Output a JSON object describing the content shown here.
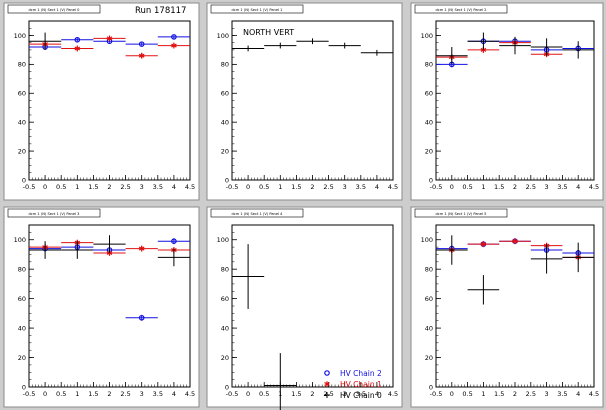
{
  "header": {
    "run_label": "Run 178117"
  },
  "colors": {
    "chain2": "#1010e0",
    "chain1": "#e01010",
    "chain0": "#000000",
    "frame": "#000000",
    "pad_bg": "#ffffff",
    "canvas_bg": "#cdcdcd"
  },
  "legend": {
    "entries": [
      {
        "label": "HV Chain 2",
        "marker": "circle",
        "color": "#1010e0"
      },
      {
        "label": "HV Chain 1",
        "marker": "star",
        "color": "#e01010"
      },
      {
        "label": "HV Chain 0",
        "marker": "cross",
        "color": "#000000"
      }
    ]
  },
  "chart_data": [
    {
      "type": "scatter",
      "title": "dcm 1 (N) Sect 1 (V) Panel 0",
      "xlim": [
        -0.5,
        4.5
      ],
      "ylim": [
        0,
        110
      ],
      "xticks": [
        "-0.5",
        "0",
        "0.5",
        "1",
        "1.5",
        "2",
        "2.5",
        "3",
        "3.5",
        "4",
        "4.5"
      ],
      "yticks": [
        "0",
        "20",
        "40",
        "60",
        "80",
        "100"
      ],
      "series": [
        {
          "name": "HV Chain 2",
          "points": [
            {
              "x": 0,
              "y": 92
            },
            {
              "x": 1,
              "y": 97
            },
            {
              "x": 2,
              "y": 96
            },
            {
              "x": 3,
              "y": 94
            },
            {
              "x": 4,
              "y": 99
            }
          ],
          "yerr": 1
        },
        {
          "name": "HV Chain 1",
          "points": [
            {
              "x": 0,
              "y": 94
            },
            {
              "x": 1,
              "y": 91
            },
            {
              "x": 2,
              "y": 98
            },
            {
              "x": 3,
              "y": 86
            },
            {
              "x": 4,
              "y": 93
            }
          ],
          "yerr": 2
        },
        {
          "name": "HV Chain 0",
          "points": [
            {
              "x": 0,
              "y": 96
            }
          ],
          "yerr": 6
        }
      ]
    },
    {
      "type": "scatter",
      "title": "dcm 1 (N) Sect 1 (V) Panel 1",
      "label": "NORTH VERT",
      "xlim": [
        -0.5,
        4.5
      ],
      "ylim": [
        0,
        110
      ],
      "xticks": [
        "-0.5",
        "0",
        "0.5",
        "1",
        "1.5",
        "2",
        "2.5",
        "3",
        "3.5",
        "4",
        "4.5"
      ],
      "yticks": [
        "0",
        "20",
        "40",
        "60",
        "80",
        "100"
      ],
      "series": [
        {
          "name": "HV Chain 0",
          "points": [
            {
              "x": 0,
              "y": 91
            },
            {
              "x": 1,
              "y": 93
            },
            {
              "x": 2,
              "y": 96
            },
            {
              "x": 3,
              "y": 93
            },
            {
              "x": 4,
              "y": 88
            }
          ],
          "yerr": 2
        }
      ]
    },
    {
      "type": "scatter",
      "title": "dcm 1 (N) Sect 1 (V) Panel 2",
      "xlim": [
        -0.5,
        4.5
      ],
      "ylim": [
        0,
        110
      ],
      "xticks": [
        "-0.5",
        "0",
        "0.5",
        "1",
        "1.5",
        "2",
        "2.5",
        "3",
        "3.5",
        "4",
        "4.5"
      ],
      "yticks": [
        "0",
        "20",
        "40",
        "60",
        "80",
        "100"
      ],
      "series": [
        {
          "name": "HV Chain 2",
          "points": [
            {
              "x": 0,
              "y": 80
            },
            {
              "x": 1,
              "y": 96
            },
            {
              "x": 2,
              "y": 96
            },
            {
              "x": 3,
              "y": 90
            },
            {
              "x": 4,
              "y": 91
            }
          ],
          "yerr": 2
        },
        {
          "name": "HV Chain 1",
          "points": [
            {
              "x": 0,
              "y": 85
            },
            {
              "x": 1,
              "y": 90
            },
            {
              "x": 2,
              "y": 95
            },
            {
              "x": 3,
              "y": 87
            }
          ],
          "yerr": 2
        },
        {
          "name": "HV Chain 0",
          "points": [
            {
              "x": 0,
              "y": 86
            },
            {
              "x": 1,
              "y": 96
            },
            {
              "x": 2,
              "y": 93
            },
            {
              "x": 3,
              "y": 92
            },
            {
              "x": 4,
              "y": 90
            }
          ],
          "yerr": 6
        }
      ]
    },
    {
      "type": "scatter",
      "title": "dcm 1 (N) Sect 1 (V) Panel 3",
      "xlim": [
        -0.5,
        4.5
      ],
      "ylim": [
        0,
        110
      ],
      "xticks": [
        "-0.5",
        "0",
        "0.5",
        "1",
        "1.5",
        "2",
        "2.5",
        "3",
        "3.5",
        "4",
        "4.5"
      ],
      "yticks": [
        "0",
        "20",
        "40",
        "60",
        "80",
        "100"
      ],
      "series": [
        {
          "name": "HV Chain 2",
          "points": [
            {
              "x": 0,
              "y": 94
            },
            {
              "x": 1,
              "y": 95
            },
            {
              "x": 2,
              "y": 93
            },
            {
              "x": 3,
              "y": 47
            },
            {
              "x": 4,
              "y": 99
            }
          ],
          "yerr": 2
        },
        {
          "name": "HV Chain 1",
          "points": [
            {
              "x": 0,
              "y": 95
            },
            {
              "x": 1,
              "y": 98
            },
            {
              "x": 2,
              "y": 91
            },
            {
              "x": 3,
              "y": 94
            },
            {
              "x": 4,
              "y": 93
            }
          ],
          "yerr": 2
        },
        {
          "name": "HV Chain 0",
          "points": [
            {
              "x": 0,
              "y": 93
            },
            {
              "x": 1,
              "y": 93
            },
            {
              "x": 2,
              "y": 97
            },
            {
              "x": 4,
              "y": 88
            }
          ],
          "yerr": 6
        }
      ]
    },
    {
      "type": "scatter",
      "title": "dcm 1 (N) Sect 1 (V) Panel 4",
      "xlim": [
        -0.5,
        4.5
      ],
      "ylim": [
        0,
        110
      ],
      "xticks": [
        "-0.5",
        "0",
        "0.5",
        "1",
        "1.5",
        "2",
        "2.5",
        "3",
        "3.5",
        "4",
        "4.5"
      ],
      "yticks": [
        "0",
        "20",
        "40",
        "60",
        "80",
        "100"
      ],
      "series": [
        {
          "name": "HV Chain 0",
          "points": [
            {
              "x": 0,
              "y": 75
            },
            {
              "x": 1,
              "y": 1
            }
          ],
          "yerr": 22,
          "xerr": 0.5
        }
      ]
    },
    {
      "type": "scatter",
      "title": "dcm 1 (N) Sect 1 (V) Panel 5",
      "xlim": [
        -0.5,
        4.5
      ],
      "ylim": [
        0,
        110
      ],
      "xticks": [
        "-0.5",
        "0",
        "0.5",
        "1",
        "1.5",
        "2",
        "2.5",
        "3",
        "3.5",
        "4",
        "4.5"
      ],
      "yticks": [
        "0",
        "20",
        "40",
        "60",
        "80",
        "100"
      ],
      "series": [
        {
          "name": "HV Chain 2",
          "points": [
            {
              "x": 0,
              "y": 94
            },
            {
              "x": 1,
              "y": 97
            },
            {
              "x": 2,
              "y": 99
            },
            {
              "x": 3,
              "y": 93
            },
            {
              "x": 4,
              "y": 91
            }
          ],
          "yerr": 2
        },
        {
          "name": "HV Chain 1",
          "points": [
            {
              "x": 0,
              "y": 93
            },
            {
              "x": 1,
              "y": 97
            },
            {
              "x": 2,
              "y": 99
            },
            {
              "x": 3,
              "y": 96
            },
            {
              "x": 4,
              "y": 88
            }
          ],
          "yerr": 2
        },
        {
          "name": "HV Chain 0",
          "points": [
            {
              "x": 0,
              "y": 93
            },
            {
              "x": 1,
              "y": 66
            },
            {
              "x": 3,
              "y": 87
            },
            {
              "x": 4,
              "y": 88
            }
          ],
          "yerr": 10
        }
      ]
    }
  ]
}
